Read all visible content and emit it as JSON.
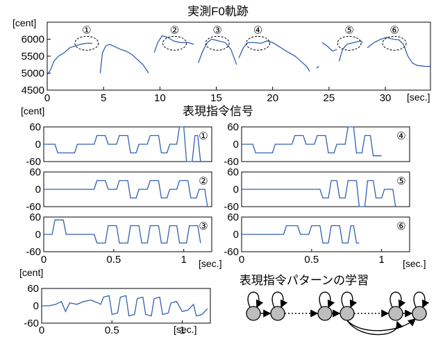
{
  "chart_data": [
    {
      "type": "line",
      "title": "実測F0軌跡",
      "ylabel_unit": "[cent]",
      "xlabel_unit": "[sec.]",
      "xlim": [
        0,
        34
      ],
      "ylim": [
        4500,
        6500
      ],
      "yticks": [
        4500,
        5000,
        5500,
        6000
      ],
      "xticks": [
        0,
        5,
        10,
        15,
        20,
        25,
        30
      ],
      "markers": [
        {
          "label": "①",
          "t": 3.5
        },
        {
          "label": "②",
          "t": 11.3
        },
        {
          "label": "③",
          "t": 15.1
        },
        {
          "label": "④",
          "t": 18.7
        },
        {
          "label": "⑤",
          "t": 26.8
        },
        {
          "label": "⑥",
          "t": 30.8
        }
      ],
      "series": [
        {
          "segments": [
            [
              [
                0,
                4950
              ],
              [
                0.3,
                5100
              ],
              [
                0.6,
                5350
              ],
              [
                1,
                5500
              ],
              [
                1.5,
                5600
              ],
              [
                2,
                5750
              ],
              [
                2.5,
                5800
              ],
              [
                3,
                5850
              ],
              [
                3.5,
                5880
              ],
              [
                4,
                5880
              ]
            ],
            [
              [
                4.7,
                5000
              ],
              [
                4.9,
                5600
              ],
              [
                5.2,
                5800
              ],
              [
                5.5,
                5850
              ],
              [
                6,
                5780
              ],
              [
                6.5,
                5700
              ],
              [
                7,
                5650
              ],
              [
                7.5,
                5550
              ],
              [
                8,
                5400
              ],
              [
                8.5,
                5250
              ],
              [
                9,
                5000
              ]
            ],
            [
              [
                9.5,
                5600
              ],
              [
                9.8,
                5900
              ],
              [
                10.2,
                6100
              ],
              [
                10.7,
                6050
              ],
              [
                11.2,
                5950
              ],
              [
                11.8,
                5900
              ],
              [
                12.5,
                5900
              ],
              [
                13,
                5850
              ]
            ],
            [
              [
                13.4,
                5300
              ],
              [
                13.8,
                5650
              ],
              [
                14.2,
                5900
              ],
              [
                14.6,
                6000
              ],
              [
                15.2,
                5950
              ],
              [
                15.8,
                5900
              ],
              [
                16.3,
                5700
              ],
              [
                16.8,
                5250
              ]
            ],
            [
              [
                17,
                5450
              ],
              [
                17.4,
                5750
              ],
              [
                17.8,
                5900
              ],
              [
                18.3,
                5900
              ],
              [
                19,
                5880
              ],
              [
                19.5,
                5950
              ],
              [
                20,
                5900
              ],
              [
                20.5,
                5800
              ],
              [
                21.2,
                5650
              ],
              [
                22,
                5500
              ],
              [
                22.5,
                5350
              ],
              [
                23,
                5200
              ],
              [
                23.3,
                5050
              ]
            ],
            [
              [
                23.9,
                5150
              ],
              [
                24.1,
                5200
              ]
            ],
            [
              [
                24.4,
                5900
              ],
              [
                24.9,
                5780
              ],
              [
                25.3,
                5650
              ],
              [
                25.7,
                5700
              ]
            ],
            [
              [
                25.9,
                5350
              ],
              [
                26.2,
                5700
              ],
              [
                26.6,
                5850
              ],
              [
                27.2,
                5900
              ],
              [
                27.8,
                5950
              ],
              [
                28,
                5900
              ]
            ],
            [
              [
                28.4,
                5750
              ],
              [
                29,
                5900
              ],
              [
                29.6,
                6000
              ],
              [
                30.1,
                6050
              ],
              [
                30.7,
                6000
              ],
              [
                31.2,
                5980
              ],
              [
                31.6,
                5850
              ],
              [
                32,
                5500
              ],
              [
                32.4,
                5300
              ],
              [
                32.8,
                5230
              ],
              [
                33.5,
                5200
              ],
              [
                34,
                5200
              ]
            ]
          ]
        }
      ]
    },
    {
      "type": "line",
      "title": "表現指令信号",
      "ylabel_unit": "[cent]",
      "xlabel_unit": "[sec.]",
      "xlim": [
        0,
        1.2
      ],
      "ylim": [
        -60,
        60
      ],
      "yticks": [
        60,
        0,
        -60
      ],
      "xticks": [
        0,
        0.5,
        1
      ],
      "panels": [
        {
          "label": "①",
          "side": "left",
          "values": [
            [
              0,
              0
            ],
            [
              0.08,
              0
            ],
            [
              0.1,
              -30
            ],
            [
              0.22,
              -30
            ],
            [
              0.24,
              0
            ],
            [
              0.36,
              0
            ],
            [
              0.38,
              30
            ],
            [
              0.44,
              30
            ],
            [
              0.46,
              0
            ],
            [
              0.52,
              0
            ],
            [
              0.54,
              30
            ],
            [
              0.6,
              30
            ],
            [
              0.62,
              -30
            ],
            [
              0.66,
              -30
            ],
            [
              0.68,
              0
            ],
            [
              0.74,
              0
            ],
            [
              0.76,
              30
            ],
            [
              0.82,
              30
            ],
            [
              0.84,
              -30
            ],
            [
              0.88,
              -30
            ],
            [
              0.9,
              0
            ],
            [
              0.95,
              0
            ],
            [
              0.97,
              60
            ],
            [
              1.0,
              60
            ],
            [
              1.02,
              -60
            ],
            [
              1.06,
              -60
            ],
            [
              1.08,
              30
            ],
            [
              1.1,
              30
            ],
            [
              1.12,
              -60
            ]
          ]
        },
        {
          "label": "④",
          "side": "right",
          "values": [
            [
              0,
              0
            ],
            [
              0.08,
              0
            ],
            [
              0.1,
              -30
            ],
            [
              0.22,
              -30
            ],
            [
              0.24,
              0
            ],
            [
              0.36,
              0
            ],
            [
              0.38,
              30
            ],
            [
              0.44,
              30
            ],
            [
              0.46,
              0
            ],
            [
              0.52,
              0
            ],
            [
              0.54,
              30
            ],
            [
              0.6,
              30
            ],
            [
              0.62,
              -30
            ],
            [
              0.66,
              -30
            ],
            [
              0.68,
              0
            ],
            [
              0.74,
              0
            ],
            [
              0.76,
              60
            ],
            [
              0.8,
              60
            ],
            [
              0.82,
              -30
            ],
            [
              0.86,
              -30
            ],
            [
              0.88,
              30
            ],
            [
              0.92,
              30
            ],
            [
              0.94,
              -40
            ],
            [
              1.0,
              -40
            ]
          ]
        },
        {
          "label": "②",
          "side": "left",
          "values": [
            [
              0,
              0
            ],
            [
              0.36,
              0
            ],
            [
              0.38,
              30
            ],
            [
              0.44,
              30
            ],
            [
              0.46,
              0
            ],
            [
              0.52,
              0
            ],
            [
              0.54,
              30
            ],
            [
              0.6,
              30
            ],
            [
              0.62,
              -30
            ],
            [
              0.66,
              -30
            ],
            [
              0.68,
              0
            ],
            [
              0.74,
              0
            ],
            [
              0.76,
              30
            ],
            [
              0.82,
              30
            ],
            [
              0.84,
              -30
            ],
            [
              0.88,
              -30
            ],
            [
              0.9,
              0
            ],
            [
              0.95,
              0
            ],
            [
              0.97,
              30
            ],
            [
              1.03,
              30
            ],
            [
              1.05,
              -30
            ],
            [
              1.09,
              -30
            ],
            [
              1.11,
              0
            ],
            [
              1.15,
              0
            ],
            [
              1.17,
              -60
            ]
          ]
        },
        {
          "label": "⑤",
          "side": "right",
          "values": [
            [
              0,
              0
            ],
            [
              0.56,
              0
            ],
            [
              0.58,
              -30
            ],
            [
              0.62,
              -30
            ],
            [
              0.64,
              30
            ],
            [
              0.68,
              30
            ],
            [
              0.7,
              -30
            ],
            [
              0.74,
              -30
            ],
            [
              0.76,
              30
            ],
            [
              0.82,
              30
            ],
            [
              0.84,
              -60
            ],
            [
              0.88,
              -60
            ],
            [
              0.9,
              30
            ],
            [
              0.94,
              30
            ],
            [
              0.96,
              -30
            ],
            [
              1.0,
              -30
            ],
            [
              1.02,
              0
            ],
            [
              1.08,
              0
            ],
            [
              1.1,
              -60
            ]
          ]
        },
        {
          "label": "③",
          "side": "left",
          "values": [
            [
              0,
              0
            ],
            [
              0.06,
              0
            ],
            [
              0.08,
              50
            ],
            [
              0.14,
              50
            ],
            [
              0.16,
              0
            ],
            [
              0.36,
              0
            ],
            [
              0.38,
              -30
            ],
            [
              0.44,
              -30
            ],
            [
              0.46,
              30
            ],
            [
              0.52,
              30
            ],
            [
              0.54,
              -30
            ],
            [
              0.6,
              -30
            ],
            [
              0.62,
              30
            ],
            [
              0.68,
              30
            ],
            [
              0.7,
              -30
            ],
            [
              0.74,
              -30
            ],
            [
              0.76,
              30
            ],
            [
              0.82,
              30
            ],
            [
              0.84,
              -30
            ],
            [
              0.88,
              -30
            ],
            [
              0.9,
              30
            ],
            [
              0.95,
              30
            ],
            [
              0.97,
              -30
            ],
            [
              1.02,
              -30
            ],
            [
              1.04,
              30
            ],
            [
              1.1,
              30
            ],
            [
              1.12,
              -30
            ]
          ]
        },
        {
          "label": "⑥",
          "side": "right",
          "values": [
            [
              0,
              0
            ],
            [
              0.3,
              0
            ],
            [
              0.32,
              30
            ],
            [
              0.4,
              30
            ],
            [
              0.42,
              0
            ],
            [
              0.48,
              0
            ],
            [
              0.5,
              30
            ],
            [
              0.56,
              30
            ],
            [
              0.58,
              -30
            ],
            [
              0.62,
              -30
            ],
            [
              0.64,
              30
            ],
            [
              0.7,
              30
            ],
            [
              0.72,
              -30
            ],
            [
              0.76,
              -30
            ],
            [
              0.78,
              30
            ],
            [
              0.8,
              30
            ],
            [
              0.82,
              -30
            ],
            [
              0.84,
              -30
            ]
          ]
        }
      ]
    },
    {
      "type": "line",
      "title": "表現指令パターンの学習",
      "ylabel_unit": "[cent]",
      "xlabel_unit": "[sec.]",
      "xlim": [
        0,
        1.2
      ],
      "ylim": [
        -60,
        60
      ],
      "yticks": [
        60,
        0,
        -60
      ],
      "xticks": [
        0,
        0.5,
        1
      ],
      "values": [
        [
          0,
          0
        ],
        [
          0.05,
          0
        ],
        [
          0.1,
          5
        ],
        [
          0.14,
          15
        ],
        [
          0.17,
          -20
        ],
        [
          0.2,
          10
        ],
        [
          0.25,
          5
        ],
        [
          0.3,
          15
        ],
        [
          0.35,
          20
        ],
        [
          0.4,
          10
        ],
        [
          0.42,
          5
        ],
        [
          0.44,
          30
        ],
        [
          0.48,
          35
        ],
        [
          0.5,
          -30
        ],
        [
          0.54,
          -25
        ],
        [
          0.56,
          30
        ],
        [
          0.6,
          35
        ],
        [
          0.62,
          -35
        ],
        [
          0.66,
          -30
        ],
        [
          0.68,
          25
        ],
        [
          0.72,
          30
        ],
        [
          0.74,
          -30
        ],
        [
          0.78,
          -35
        ],
        [
          0.8,
          25
        ],
        [
          0.84,
          30
        ],
        [
          0.86,
          -30
        ],
        [
          0.9,
          -25
        ],
        [
          0.92,
          10
        ],
        [
          0.96,
          15
        ],
        [
          1.0,
          -20
        ],
        [
          1.04,
          -15
        ],
        [
          1.08,
          5
        ],
        [
          1.1,
          -35
        ],
        [
          1.14,
          -30
        ],
        [
          1.18,
          -10
        ]
      ]
    }
  ]
}
